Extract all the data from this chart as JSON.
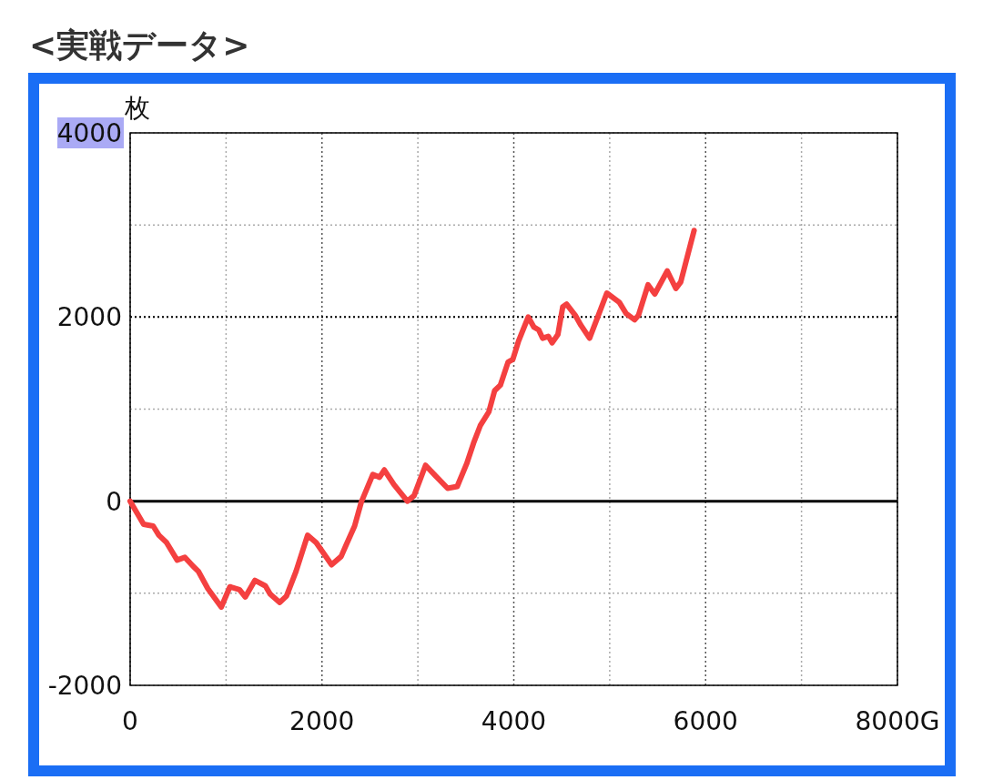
{
  "chart_data": {
    "type": "line",
    "title": "<実戦データ>",
    "ylabel": "枚",
    "x": [
      0,
      140,
      240,
      300,
      380,
      490,
      570,
      660,
      710,
      810,
      950,
      1040,
      1140,
      1200,
      1300,
      1410,
      1460,
      1560,
      1630,
      1730,
      1850,
      1940,
      2100,
      2200,
      2250,
      2340,
      2410,
      2530,
      2600,
      2650,
      2750,
      2890,
      2960,
      3080,
      3180,
      3310,
      3410,
      3510,
      3580,
      3650,
      3740,
      3800,
      3860,
      3940,
      3990,
      4050,
      4150,
      4210,
      4260,
      4300,
      4360,
      4400,
      4460,
      4510,
      4550,
      4640,
      4700,
      4790,
      4860,
      4970,
      5100,
      5170,
      5260,
      5300,
      5400,
      5470,
      5600,
      5690,
      5740,
      5880
    ],
    "series": [
      {
        "color": "#f44040",
        "values": [
          0,
          -250,
          -270,
          -370,
          -450,
          -640,
          -610,
          -710,
          -760,
          -950,
          -1150,
          -930,
          -960,
          -1040,
          -860,
          -920,
          -1010,
          -1100,
          -1030,
          -760,
          -370,
          -450,
          -690,
          -600,
          -480,
          -270,
          -10,
          290,
          260,
          340,
          180,
          0,
          60,
          390,
          280,
          140,
          160,
          410,
          630,
          820,
          970,
          1200,
          1260,
          1510,
          1540,
          1740,
          2000,
          1890,
          1860,
          1770,
          1790,
          1720,
          1810,
          2110,
          2140,
          2020,
          1910,
          1770,
          1960,
          2260,
          2160,
          2040,
          1970,
          2020,
          2350,
          2250,
          2500,
          2310,
          2380,
          2940
        ]
      }
    ],
    "xlim": [
      0,
      8000
    ],
    "xticks": [
      0,
      {
        "value": 1000,
        "label": null
      },
      2000,
      {
        "value": 3000,
        "label": null
      },
      4000,
      {
        "value": 5000,
        "label": null
      },
      6000,
      {
        "value": 7000,
        "label": null
      },
      {
        "value": 8000,
        "label": "8000G"
      }
    ],
    "ylim": [
      -2000,
      4000
    ],
    "yticks": [
      -2000,
      {
        "value": -1000,
        "label": null
      },
      0,
      {
        "value": 1000,
        "label": null
      },
      2000,
      {
        "value": 3000,
        "label": null
      },
      4000
    ],
    "grid": true,
    "line_style": "solid",
    "marker": "none",
    "ref_lines": [
      {
        "axis": "y",
        "value": 0,
        "color": "#000000"
      },
      {
        "axis": "y",
        "value": 2000,
        "color": "#000000",
        "line_style": "dotted"
      }
    ]
  }
}
